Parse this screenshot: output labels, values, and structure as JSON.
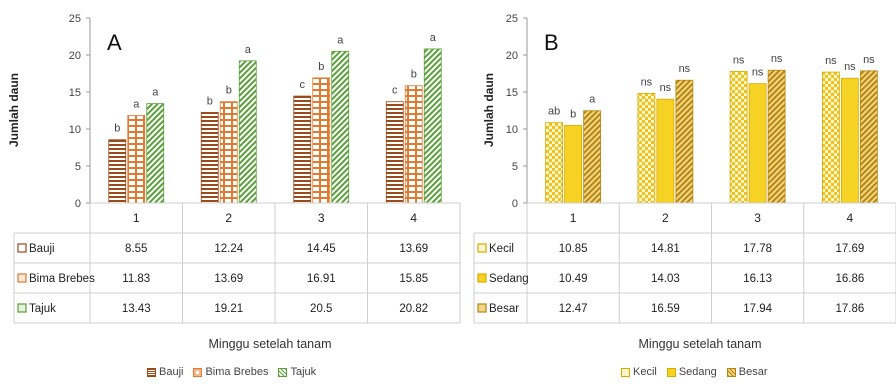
{
  "colors": {
    "bauji": "#9a4b1a",
    "bima": "#e07a30",
    "tajuk": "#5aa03a",
    "kecil": "#f1c21a",
    "sedang": "#f5d224",
    "besar": "#c9a01a",
    "grid_border": "#cfcfcf"
  },
  "chart_data": [
    {
      "type": "bar",
      "panel_label": "A",
      "ylabel": "Jumlah daun",
      "xlabel": "Minggu setelah tanam",
      "ylim": [
        0,
        25
      ],
      "yticks": [
        "0",
        "5",
        "10",
        "15",
        "20",
        "25"
      ],
      "categories": [
        "1",
        "2",
        "3",
        "4"
      ],
      "series": [
        {
          "name": "Bauji",
          "values": [
            8.55,
            12.24,
            14.45,
            13.69
          ],
          "labels": [
            "b",
            "b",
            "c",
            "c"
          ],
          "display": [
            "8.55",
            "12.24",
            "14.45",
            "13.69"
          ]
        },
        {
          "name": "Bima Brebes",
          "values": [
            11.83,
            13.69,
            16.91,
            15.85
          ],
          "labels": [
            "a",
            "b",
            "b",
            "b"
          ],
          "display": [
            "11.83",
            "13.69",
            "16.91",
            "15.85"
          ]
        },
        {
          "name": "Tajuk",
          "values": [
            13.43,
            19.21,
            20.5,
            20.82
          ],
          "labels": [
            "a",
            "a",
            "a",
            "a"
          ],
          "display": [
            "13.43",
            "19.21",
            "20.5",
            "20.82"
          ]
        }
      ],
      "legend_placement": "bottom"
    },
    {
      "type": "bar",
      "panel_label": "B",
      "ylabel": "Jumlah daun",
      "xlabel": "Minggu setelah tanam",
      "ylim": [
        0,
        25
      ],
      "yticks": [
        "0",
        "5",
        "10",
        "15",
        "20",
        "25"
      ],
      "categories": [
        "1",
        "2",
        "3",
        "4"
      ],
      "series": [
        {
          "name": "Kecil",
          "values": [
            10.85,
            14.81,
            17.78,
            17.69
          ],
          "labels": [
            "ab",
            "ns",
            "ns",
            "ns"
          ],
          "display": [
            "10.85",
            "14.81",
            "17.78",
            "17.69"
          ]
        },
        {
          "name": "Sedang",
          "values": [
            10.49,
            14.03,
            16.13,
            16.86
          ],
          "labels": [
            "b",
            "ns",
            "ns",
            "ns"
          ],
          "display": [
            "10.49",
            "14.03",
            "16.13",
            "16.86"
          ]
        },
        {
          "name": "Besar",
          "values": [
            12.47,
            16.59,
            17.94,
            17.86
          ],
          "labels": [
            "a",
            "ns",
            "ns",
            "ns"
          ],
          "display": [
            "12.47",
            "16.59",
            "17.94",
            "17.86"
          ]
        }
      ],
      "legend_placement": "bottom"
    }
  ]
}
